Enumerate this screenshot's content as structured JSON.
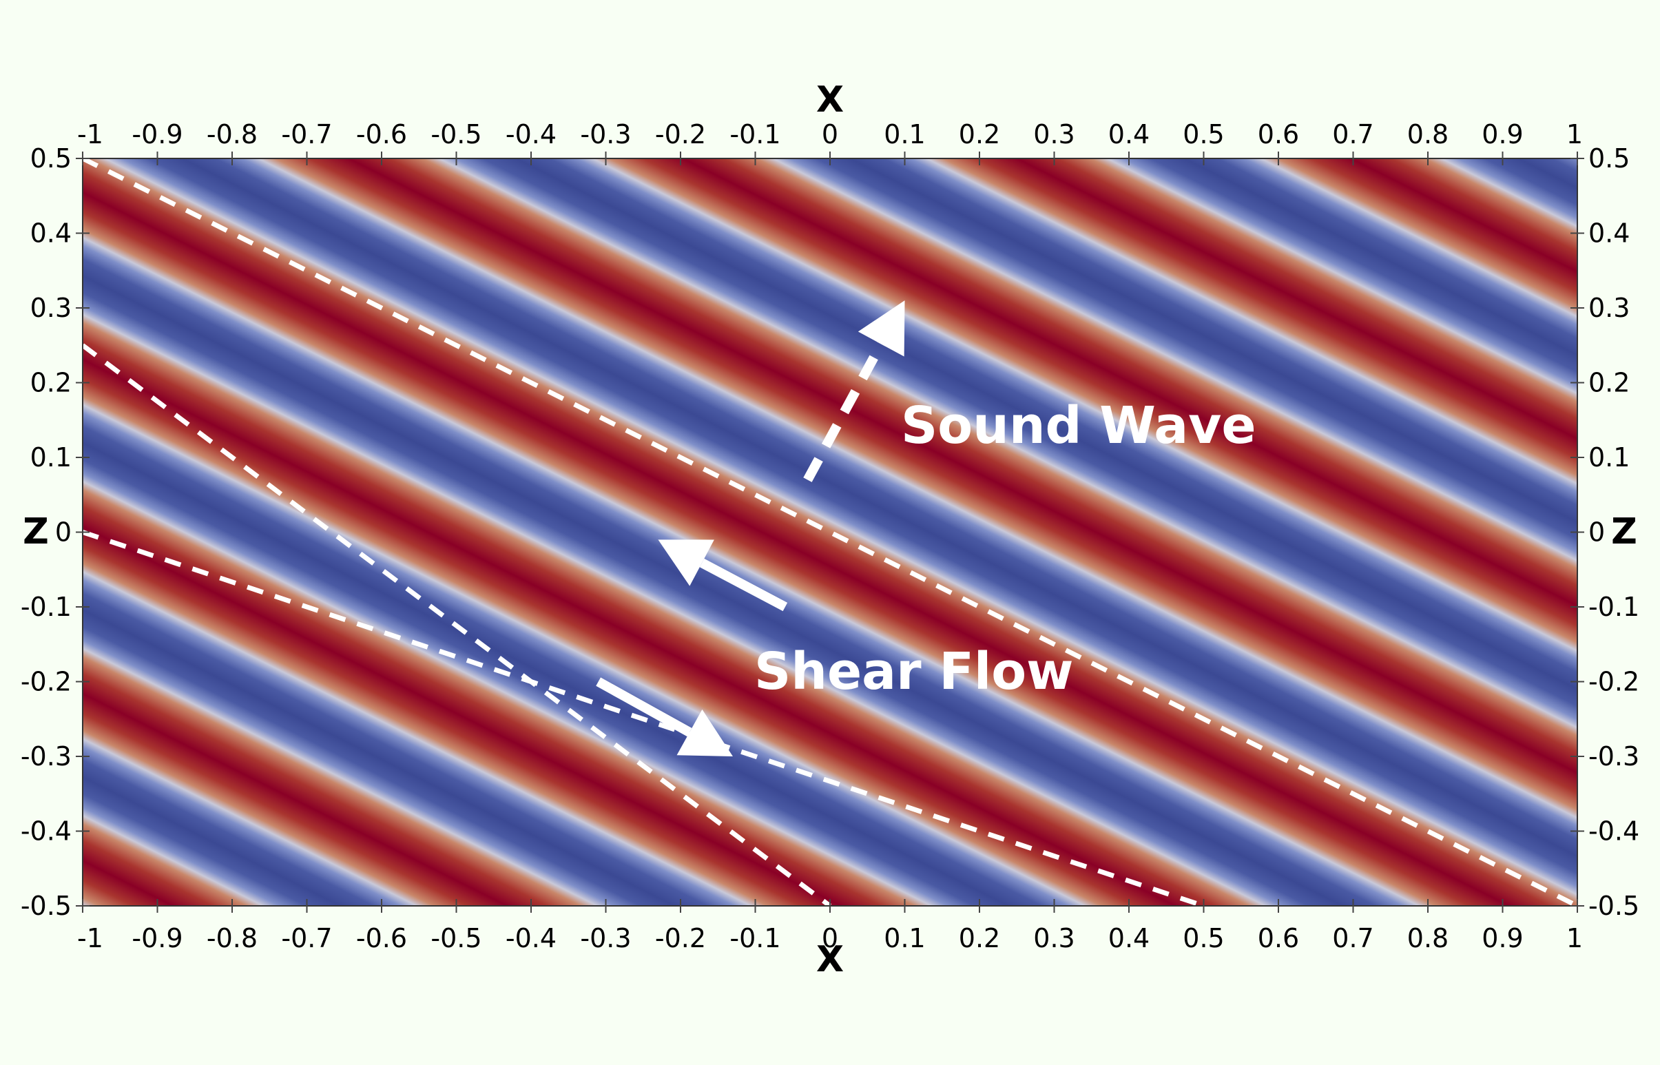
{
  "chart_data": {
    "type": "heatmap",
    "field": "sinusoidal plane wave (diverging blue-red colormap)",
    "xlabel": "X",
    "ylabel": "Z",
    "xlim": [
      -1,
      1
    ],
    "ylim": [
      -0.5,
      0.5
    ],
    "x_ticks": [
      -1,
      -0.9,
      -0.8,
      -0.7,
      -0.6,
      -0.5,
      -0.4,
      -0.3,
      -0.2,
      -0.1,
      0,
      0.1,
      0.2,
      0.3,
      0.4,
      0.5,
      0.6,
      0.7,
      0.8,
      0.9,
      1
    ],
    "x_tick_labels": [
      "-1",
      "-0.9",
      "-0.8",
      "-0.7",
      "-0.6",
      "-0.5",
      "-0.4",
      "-0.3",
      "-0.2",
      "-0.1",
      "0",
      "0.1",
      "0.2",
      "0.3",
      "0.4",
      "0.5",
      "0.6",
      "0.7",
      "0.8",
      "0.9",
      "1"
    ],
    "z_ticks": [
      0.5,
      0.4,
      0.3,
      0.2,
      0.1,
      0,
      -0.1,
      -0.2,
      -0.3,
      -0.4,
      -0.5
    ],
    "z_tick_labels": [
      "0.5",
      "0.4",
      "0.3",
      "0.2",
      "0.1",
      "0",
      "-0.1",
      "-0.2",
      "-0.3",
      "-0.4",
      "-0.5"
    ],
    "colors": {
      "low": "#3b4994",
      "mid": "#c9c9d9",
      "high": "#8a0026",
      "annotation": "#ffffff",
      "axis": "#000000",
      "background": "#f8fff4"
    },
    "wave_fronts": [
      {
        "x": [
          -1,
          0.5
        ],
        "z": [
          0,
          -0.5
        ]
      },
      {
        "x": [
          -1,
          0.0
        ],
        "z": [
          0.25,
          -0.5
        ]
      },
      {
        "x": [
          -1,
          1
        ],
        "z": [
          0.5,
          -0.5
        ]
      }
    ],
    "wave_vector": [
      1,
      2
    ],
    "wave_period": 0.447,
    "red_crest_phase_point": {
      "x": 0.25,
      "z": 0.5
    },
    "annotations": [
      {
        "name": "sound-wave-label",
        "text": "Sound Wave",
        "x": 0.33,
        "z": 0.14
      },
      {
        "name": "shear-flow-label",
        "text": "Shear Flow",
        "x": 0.1,
        "z": -0.19
      }
    ],
    "arrows": [
      {
        "name": "sound-wave-arrow",
        "style": "dashed",
        "from": {
          "x": -0.03,
          "z": 0.07
        },
        "to": {
          "x": 0.1,
          "z": 0.31
        }
      },
      {
        "name": "shear-flow-arrow-upper",
        "style": "solid",
        "from": {
          "x": -0.06,
          "z": -0.1
        },
        "to": {
          "x": -0.23,
          "z": -0.01
        }
      },
      {
        "name": "shear-flow-arrow-lower",
        "style": "solid",
        "from": {
          "x": -0.31,
          "z": -0.2
        },
        "to": {
          "x": -0.13,
          "z": -0.3
        }
      }
    ]
  }
}
